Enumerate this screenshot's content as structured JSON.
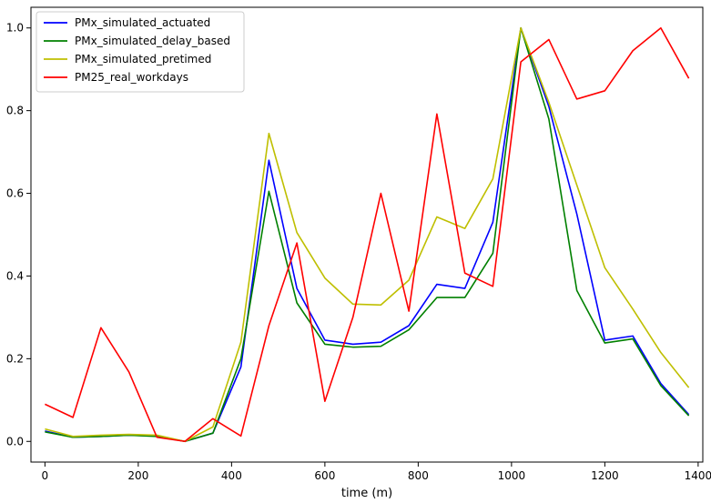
{
  "chart_data": {
    "type": "line",
    "title": "",
    "xlabel": "time (m)",
    "ylabel": "",
    "xlim": [
      -30,
      1410
    ],
    "ylim": [
      -0.05,
      1.05
    ],
    "xticks": [
      0,
      200,
      400,
      600,
      800,
      1000,
      1200,
      1400
    ],
    "xtick_labels": [
      "0",
      "200",
      "400",
      "600",
      "800",
      "1000",
      "1200",
      "1400"
    ],
    "yticks": [
      0.0,
      0.2,
      0.4,
      0.6,
      0.8,
      1.0
    ],
    "ytick_labels": [
      "0.0",
      "0.2",
      "0.4",
      "0.6",
      "0.8",
      "1.0"
    ],
    "grid": false,
    "legend_position": "top-left",
    "x": [
      0,
      60,
      120,
      180,
      240,
      300,
      360,
      420,
      480,
      540,
      600,
      660,
      720,
      780,
      840,
      900,
      960,
      1020,
      1080,
      1140,
      1200,
      1260,
      1320,
      1380
    ],
    "series": [
      {
        "name": "PMx_simulated_actuated",
        "color": "#0000ff",
        "values": [
          0.025,
          0.01,
          0.012,
          0.015,
          0.013,
          0.0,
          0.02,
          0.18,
          0.68,
          0.37,
          0.245,
          0.235,
          0.24,
          0.28,
          0.38,
          0.37,
          0.53,
          1.0,
          0.81,
          0.55,
          0.245,
          0.255,
          0.14,
          0.065
        ]
      },
      {
        "name": "PMx_simulated_delay_based",
        "color": "#008000",
        "values": [
          0.023,
          0.01,
          0.012,
          0.015,
          0.012,
          0.0,
          0.02,
          0.2,
          0.605,
          0.335,
          0.235,
          0.228,
          0.23,
          0.27,
          0.348,
          0.348,
          0.455,
          1.0,
          0.78,
          0.365,
          0.238,
          0.248,
          0.135,
          0.062
        ]
      },
      {
        "name": "PMx_simulated_pretimed",
        "color": "#bfbf00",
        "values": [
          0.03,
          0.012,
          0.015,
          0.017,
          0.015,
          0.0,
          0.035,
          0.24,
          0.745,
          0.505,
          0.395,
          0.332,
          0.33,
          0.39,
          0.543,
          0.515,
          0.635,
          1.0,
          0.82,
          0.62,
          0.42,
          0.32,
          0.215,
          0.13
        ]
      },
      {
        "name": "PM25_real_workdays",
        "color": "#ff0000",
        "values": [
          0.09,
          0.058,
          0.275,
          0.168,
          0.01,
          0.0,
          0.055,
          0.013,
          0.28,
          0.48,
          0.097,
          0.3,
          0.6,
          0.315,
          0.792,
          0.407,
          0.375,
          0.918,
          0.972,
          0.828,
          0.848,
          0.945,
          1.0,
          0.878
        ]
      }
    ]
  }
}
